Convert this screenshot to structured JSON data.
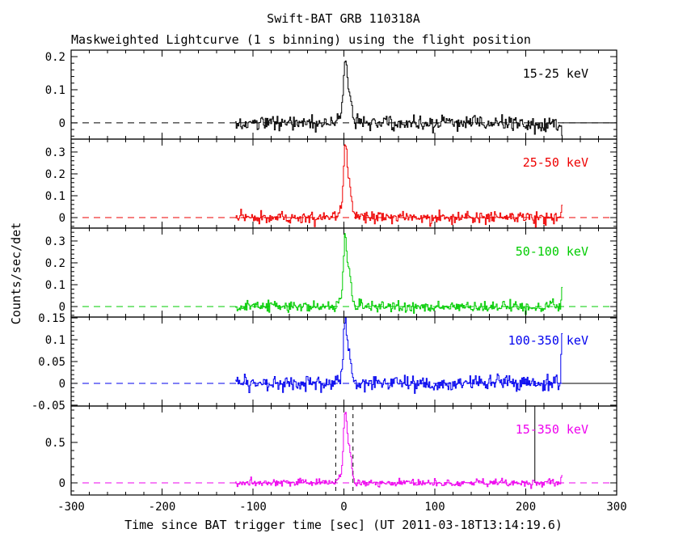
{
  "header": {
    "title": "Swift-BAT GRB 110318A",
    "subtitle": "Maskweighted Lightcurve (1 s binning) using the flight position"
  },
  "axes": {
    "ylabel": "Counts/sec/det",
    "xlabel": "Time since BAT trigger time [sec] (UT 2011-03-18T13:14:19.6)"
  },
  "chart_data": {
    "type": "line",
    "title": "Swift-BAT GRB 110318A",
    "subtitle": "Maskweighted Lightcurve (1 s binning) using the flight position",
    "xlabel": "Time since BAT trigger time [sec] (UT 2011-03-18T13:14:19.6)",
    "ylabel": "Counts/sec/det",
    "xlim": [
      -300,
      300
    ],
    "xticks": [
      -300,
      -200,
      -100,
      0,
      100,
      200,
      300
    ],
    "xtick_labels": [
      "-300",
      "-200",
      "-100",
      "0",
      "100",
      "200",
      "300"
    ],
    "x_minor_step": 20,
    "grid": false,
    "time_series": {
      "t_start": -119,
      "t_end": 240,
      "bin_sec": 1,
      "baseline": 0,
      "quiet_tail_range": [
        240,
        300
      ]
    },
    "burst": {
      "rise_start_sec": -8,
      "peak_time_sec": 1.5,
      "secondary_peak_sec": 6,
      "decay_end_sec": 18
    },
    "panels": [
      {
        "label": "15-25 keV",
        "color": "#000000",
        "ylim": [
          -0.049,
          0.2195
        ],
        "yticks": [
          0,
          0.1,
          0.2
        ],
        "ytick_labels": [
          "0",
          "0.1",
          "0.2"
        ],
        "y_minor_step": 0.02,
        "noise_sigma": 0.011,
        "peak": 0.19,
        "end_spike": -0.04,
        "seed": 42,
        "solid_zero_tail": true
      },
      {
        "label": "25-50 keV",
        "color": "#ee0000",
        "ylim": [
          -0.048,
          0.359
        ],
        "yticks": [
          0,
          0.1,
          0.2,
          0.3
        ],
        "ytick_labels": [
          "0",
          "0.1",
          "0.2",
          "0.3"
        ],
        "y_minor_step": 0.02,
        "noise_sigma": 0.013,
        "peak": 0.33,
        "end_spike": 0.06,
        "seed": 7,
        "solid_zero_tail": false
      },
      {
        "label": "50-100 keV",
        "color": "#00cc00",
        "ylim": [
          -0.048,
          0.359
        ],
        "yticks": [
          0,
          0.1,
          0.2,
          0.3
        ],
        "ytick_labels": [
          "0",
          "0.1",
          "0.2",
          "0.3"
        ],
        "y_minor_step": 0.02,
        "noise_sigma": 0.012,
        "peak": 0.34,
        "end_spike": 0.07,
        "seed": 13,
        "solid_zero_tail": false
      },
      {
        "label": "100-350 keV",
        "color": "#0000ee",
        "ylim": [
          -0.052,
          0.152
        ],
        "yticks": [
          -0.05,
          0,
          0.05,
          0.1,
          0.15
        ],
        "ytick_labels": [
          "-0.05",
          "0",
          "0.05",
          "0.1",
          "0.15"
        ],
        "y_minor_step": 0.01,
        "noise_sigma": 0.009,
        "peak": 0.148,
        "end_spike": 0.11,
        "seed": 99,
        "solid_zero_tail": true
      },
      {
        "label": "15-350 keV",
        "color": "#ee00ee",
        "ylim": [
          -0.15,
          0.95
        ],
        "yticks": [
          0,
          0.5
        ],
        "ytick_labels": [
          "0",
          "0.5"
        ],
        "y_minor_step": 0.1,
        "noise_sigma": 0.022,
        "peak": 0.92,
        "end_spike": 0.07,
        "seed": 3,
        "solid_zero_tail": false,
        "vlines_dashed": [
          -9,
          10
        ],
        "vline_solid": 210
      }
    ]
  }
}
